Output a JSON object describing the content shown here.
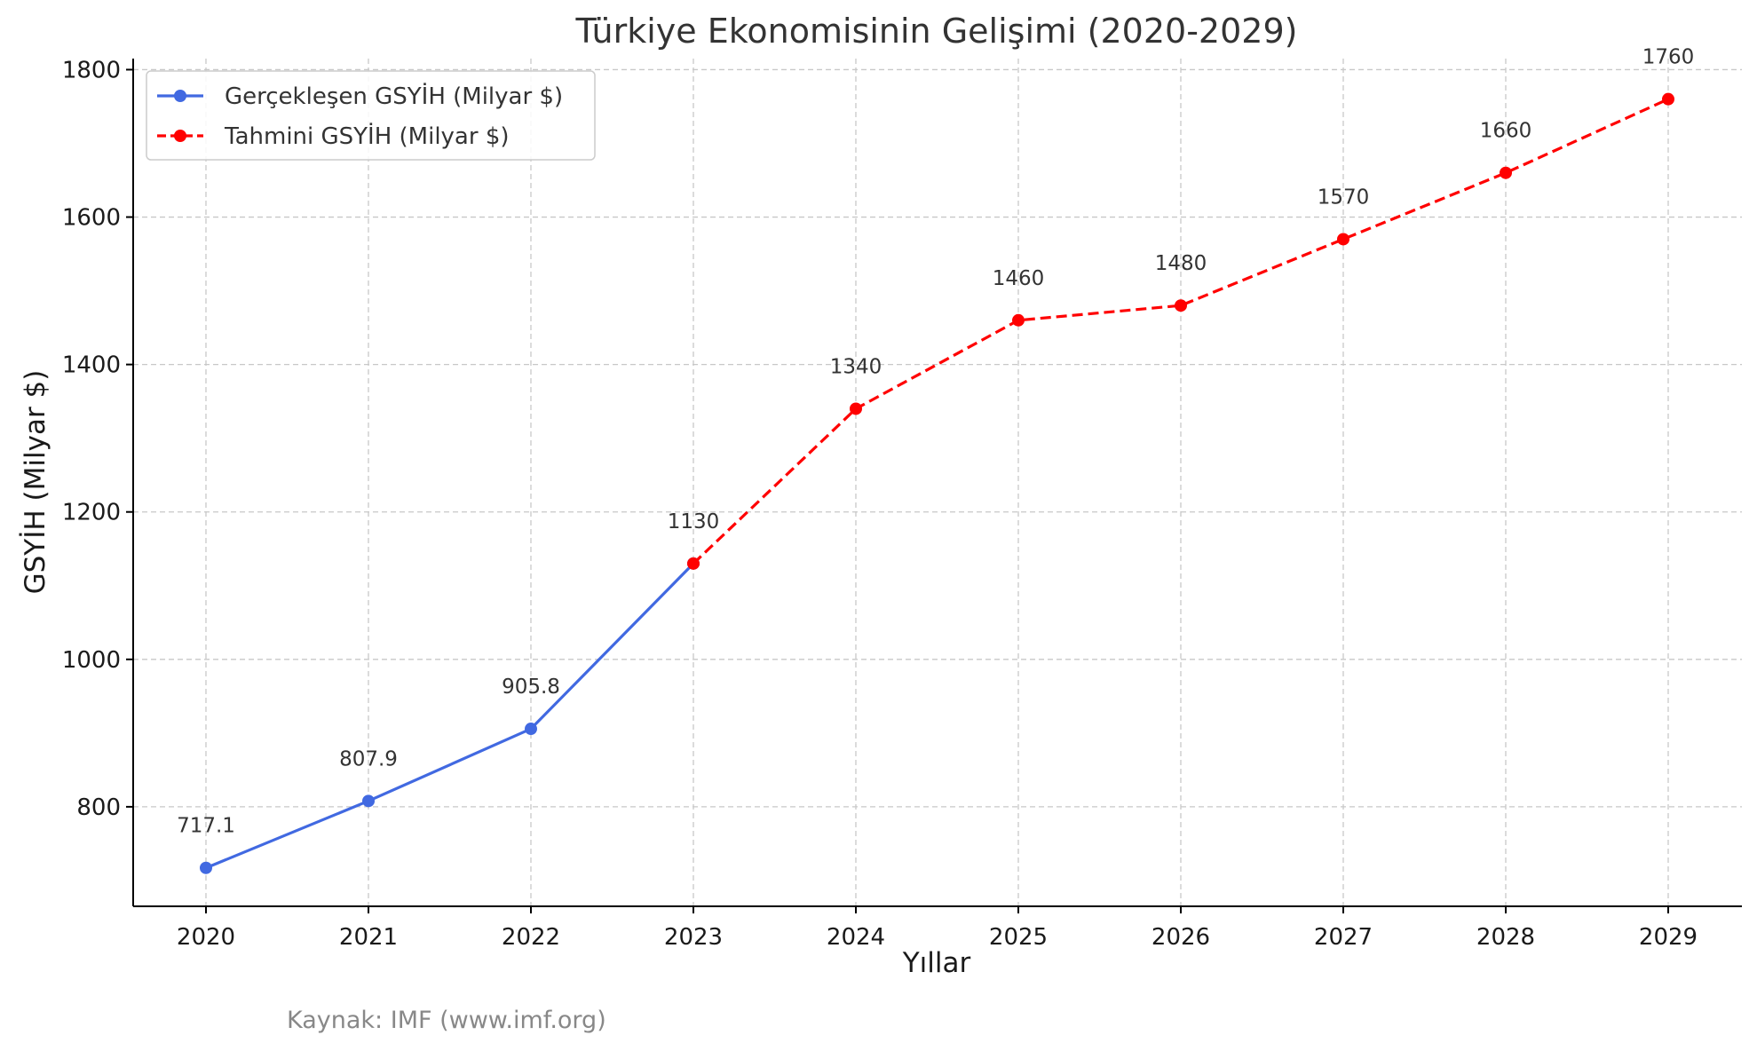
{
  "chart_data": {
    "type": "line",
    "title": "Türkiye Ekonomisinin Gelişimi (2020-2029)",
    "xlabel": "Yıllar",
    "ylabel": "GSYİH (Milyar $)",
    "categories": [
      "2020",
      "2021",
      "2022",
      "2023",
      "2024",
      "2025",
      "2026",
      "2027",
      "2028",
      "2029"
    ],
    "ylim": [
      665,
      1815
    ],
    "yticks": [
      800,
      1000,
      1200,
      1400,
      1600,
      1800
    ],
    "grid": true,
    "legend_position": "top-left",
    "series": [
      {
        "name": "Gerçekleşen GSYİH (Milyar $)",
        "color": "#4169e1",
        "line_style": "solid",
        "x": [
          "2020",
          "2021",
          "2022",
          "2023"
        ],
        "values": [
          717.1,
          807.9,
          905.8,
          1130
        ]
      },
      {
        "name": "Tahmini GSYİH (Milyar $)",
        "color": "#ff0000",
        "line_style": "dashed",
        "x": [
          "2023",
          "2024",
          "2025",
          "2026",
          "2027",
          "2028",
          "2029"
        ],
        "values": [
          1130,
          1340,
          1460,
          1480,
          1570,
          1660,
          1760
        ]
      }
    ],
    "data_labels": [
      {
        "x": "2020",
        "text": "717.1"
      },
      {
        "x": "2021",
        "text": "807.9"
      },
      {
        "x": "2022",
        "text": "905.8"
      },
      {
        "x": "2023",
        "text": "1130"
      },
      {
        "x": "2024",
        "text": "1340"
      },
      {
        "x": "2025",
        "text": "1460"
      },
      {
        "x": "2026",
        "text": "1480"
      },
      {
        "x": "2027",
        "text": "1570"
      },
      {
        "x": "2028",
        "text": "1660"
      },
      {
        "x": "2029",
        "text": "1760"
      }
    ],
    "source_note": "Kaynak: IMF (www.imf.org)"
  }
}
